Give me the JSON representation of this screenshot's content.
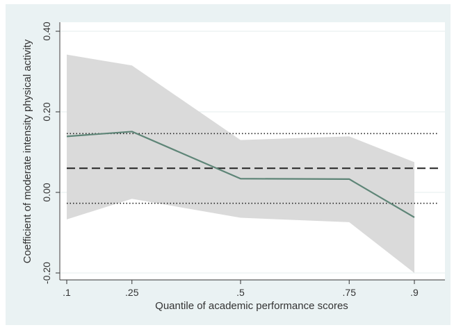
{
  "chart_data": {
    "type": "line",
    "title": "",
    "xlabel": "Quantile of academic performance scores",
    "ylabel": "Coefficient of moderate intensity physical activity",
    "x": [
      0.1,
      0.25,
      0.5,
      0.75,
      0.9
    ],
    "x_tick_labels": [
      ".1",
      ".25",
      ".5",
      ".75",
      ".9"
    ],
    "y_ticks": [
      -0.2,
      0.0,
      0.2,
      0.4
    ],
    "y_tick_labels": [
      "-0.20",
      "0.00",
      "0.20",
      "0.40"
    ],
    "xlim": [
      0.1,
      0.9
    ],
    "ylim": [
      -0.2,
      0.4
    ],
    "grid": true,
    "series": [
      {
        "type": "line",
        "values": [
          0.139,
          0.151,
          0.034,
          0.033,
          -0.062
        ],
        "color": "#5e8577"
      },
      {
        "type": "band",
        "lower": [
          -0.067,
          -0.016,
          -0.063,
          -0.074,
          -0.2
        ],
        "upper": [
          0.342,
          0.315,
          0.13,
          0.139,
          0.075
        ],
        "color": "#d8d8d8"
      }
    ],
    "reference_lines": {
      "ols_estimate": {
        "y": 0.06,
        "style": "dashed",
        "color": "#222222"
      },
      "ols_ci_upper": {
        "y": 0.146,
        "style": "dotted",
        "color": "#222222"
      },
      "ols_ci_lower": {
        "y": -0.027,
        "style": "dotted",
        "color": "#222222"
      }
    }
  }
}
